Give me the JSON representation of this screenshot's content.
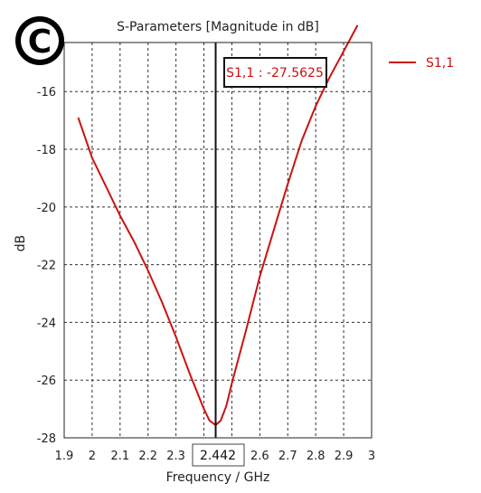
{
  "chart_data": {
    "type": "line",
    "title": "S-Parameters [Magnitude in dB]",
    "xlabel": "Frequency / GHz",
    "ylabel": "dB",
    "xlim": [
      1.9,
      3.0
    ],
    "ylim": [
      -28,
      -14.3
    ],
    "x_ticks": [
      1.9,
      2.0,
      2.1,
      2.2,
      2.3,
      2.4,
      2.5,
      2.6,
      2.7,
      2.8,
      2.9,
      3.0
    ],
    "x_tick_labels": [
      "1.9",
      "2",
      "2.1",
      "2.2",
      "2.3",
      "",
      "",
      "2.6",
      "2.7",
      "2.8",
      "2.9",
      "3"
    ],
    "y_ticks": [
      -28,
      -26,
      -24,
      -22,
      -20,
      -18,
      -16
    ],
    "y_tick_labels": [
      "-28",
      "-26",
      "-24",
      "-22",
      "-20",
      "-18",
      "-16"
    ],
    "grid": true,
    "legend_position": "outside-top-right",
    "series": [
      {
        "name": "S1,1",
        "color": "#cc1111",
        "x": [
          1.95,
          2.0,
          2.05,
          2.1,
          2.15,
          2.2,
          2.25,
          2.3,
          2.35,
          2.4,
          2.42,
          2.442,
          2.46,
          2.48,
          2.5,
          2.55,
          2.6,
          2.65,
          2.7,
          2.75,
          2.8,
          2.85,
          2.9,
          2.95
        ],
        "y": [
          -16.9,
          -18.3,
          -19.3,
          -20.3,
          -21.2,
          -22.2,
          -23.3,
          -24.5,
          -25.8,
          -27.0,
          -27.4,
          -27.56,
          -27.4,
          -26.9,
          -26.1,
          -24.3,
          -22.4,
          -20.8,
          -19.2,
          -17.7,
          -16.5,
          -15.5,
          -14.6,
          -13.7
        ]
      }
    ],
    "marker": {
      "label": "S1,1 : -27.5625",
      "x": 2.442,
      "y": -27.5625
    },
    "cursor": {
      "x": 2.442,
      "label": "2.442"
    }
  },
  "logo": {
    "icon": "copyright-icon",
    "text": "C"
  }
}
